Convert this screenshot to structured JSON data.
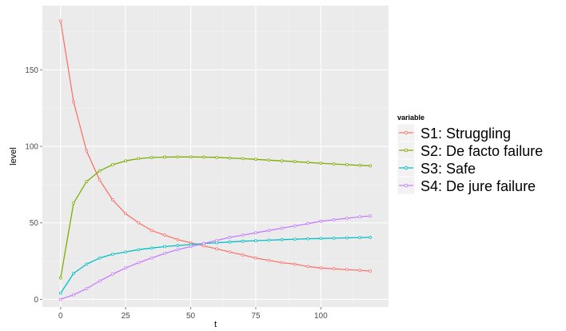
{
  "chart_data": {
    "type": "line",
    "xlabel": "t",
    "ylabel": "level",
    "xlim": [
      -7,
      126
    ],
    "ylim": [
      -5,
      192
    ],
    "x_ticks": [
      0,
      25,
      50,
      75,
      100
    ],
    "y_ticks": [
      0,
      50,
      100,
      150
    ],
    "grid": true,
    "legend": {
      "title": "variable",
      "placement": "right"
    },
    "x": [
      0,
      5,
      10,
      15,
      20,
      25,
      30,
      35,
      40,
      45,
      50,
      55,
      60,
      65,
      70,
      75,
      80,
      85,
      90,
      95,
      100,
      105,
      110,
      115,
      119
    ],
    "series": [
      {
        "name": "S1: Struggling",
        "color": "#F8766D",
        "values": [
          182,
          129,
          97,
          78,
          65,
          56,
          50,
          45,
          42,
          39,
          37,
          35,
          33,
          31,
          29,
          27,
          25.5,
          24,
          23,
          21.5,
          20.5,
          20,
          19.5,
          19,
          18.5
        ]
      },
      {
        "name": "S2: De facto failure",
        "color": "#7CAE00",
        "values": [
          14,
          63,
          77,
          84,
          88,
          90.5,
          92,
          92.7,
          93,
          93.1,
          93.1,
          93,
          92.8,
          92.4,
          92,
          91.5,
          91,
          90.5,
          90,
          89.5,
          89,
          88.5,
          88,
          87.6,
          87.3
        ]
      },
      {
        "name": "S3: Safe",
        "color": "#00BFC4",
        "values": [
          4,
          17,
          23,
          27,
          29.5,
          31,
          32.5,
          33.5,
          34.5,
          35.2,
          35.8,
          36.5,
          37,
          37.5,
          38,
          38.3,
          38.7,
          39,
          39.3,
          39.6,
          39.8,
          40,
          40.2,
          40.4,
          40.5
        ]
      },
      {
        "name": "S4: De jure failure",
        "color": "#C77CFF",
        "values": [
          0,
          3,
          7,
          12,
          16.5,
          20.5,
          24,
          27,
          30,
          32.5,
          34.5,
          36.5,
          38.5,
          40.5,
          42,
          43.5,
          45,
          46.5,
          48,
          49.5,
          51,
          52,
          53,
          54,
          54.5
        ]
      }
    ]
  }
}
